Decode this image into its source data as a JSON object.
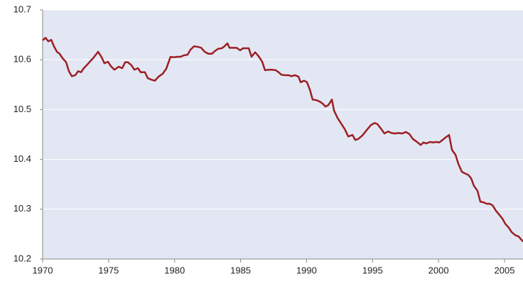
{
  "chart_data": {
    "type": "line",
    "x": [
      1970.0,
      1970.22,
      1970.43,
      1970.65,
      1970.86,
      1971.08,
      1971.29,
      1971.51,
      1971.78,
      1971.99,
      1972.21,
      1972.48,
      1972.69,
      1972.91,
      1973.12,
      1973.34,
      1973.61,
      1973.82,
      1974.2,
      1974.47,
      1974.68,
      1974.95,
      1975.17,
      1975.44,
      1975.76,
      1976.03,
      1976.25,
      1976.46,
      1976.73,
      1976.95,
      1977.22,
      1977.43,
      1977.75,
      1977.97,
      1978.24,
      1978.51,
      1978.78,
      1979.1,
      1979.37,
      1979.69,
      1979.91,
      1980.18,
      1980.45,
      1980.72,
      1980.98,
      1981.2,
      1981.47,
      1981.74,
      1982.01,
      1982.28,
      1982.55,
      1982.82,
      1983.03,
      1983.3,
      1983.57,
      1983.78,
      1984.0,
      1984.16,
      1984.38,
      1984.7,
      1984.97,
      1985.18,
      1985.4,
      1985.62,
      1985.83,
      1986.1,
      1986.37,
      1986.64,
      1986.85,
      1987.12,
      1987.39,
      1987.66,
      1987.88,
      1988.09,
      1988.36,
      1988.63,
      1988.85,
      1989.12,
      1989.39,
      1989.55,
      1989.82,
      1990.03,
      1990.25,
      1990.46,
      1990.73,
      1991.0,
      1991.22,
      1991.43,
      1991.65,
      1991.92,
      1992.08,
      1992.35,
      1992.62,
      1992.89,
      1993.16,
      1993.48,
      1993.69,
      1993.91,
      1994.23,
      1994.56,
      1994.88,
      1995.15,
      1995.36,
      1995.63,
      1995.9,
      1996.17,
      1996.44,
      1996.71,
      1996.98,
      1997.25,
      1997.52,
      1997.79,
      1998.05,
      1998.32,
      1998.65,
      1998.86,
      1999.08,
      1999.35,
      1999.56,
      1999.83,
      2000.05,
      2000.26,
      2000.53,
      2000.8,
      2001.02,
      2001.29,
      2001.5,
      2001.77,
      2001.99,
      2002.25,
      2002.47,
      2002.68,
      2002.95,
      2003.17,
      2003.39,
      2003.65,
      2003.87,
      2004.09,
      2004.35,
      2004.57,
      2004.84,
      2005.05,
      2005.32,
      2005.54,
      2005.81,
      2006.08,
      2006.4
    ],
    "series": [
      {
        "color": "#9b1f24",
        "values": [
          10.639,
          10.644,
          10.637,
          10.64,
          10.627,
          10.616,
          10.612,
          10.603,
          10.595,
          10.577,
          10.567,
          10.569,
          10.577,
          10.575,
          10.583,
          10.589,
          10.597,
          10.603,
          10.616,
          10.605,
          10.593,
          10.596,
          10.587,
          10.58,
          10.586,
          10.583,
          10.595,
          10.595,
          10.589,
          10.58,
          10.583,
          10.575,
          10.575,
          10.563,
          10.56,
          10.558,
          10.566,
          10.572,
          10.582,
          10.606,
          10.605,
          10.606,
          10.606,
          10.609,
          10.61,
          10.62,
          10.627,
          10.626,
          10.624,
          10.616,
          10.612,
          10.612,
          10.617,
          10.622,
          10.623,
          10.627,
          10.633,
          10.624,
          10.624,
          10.624,
          10.619,
          10.623,
          10.623,
          10.623,
          10.606,
          10.615,
          10.607,
          10.596,
          10.579,
          10.58,
          10.58,
          10.579,
          10.575,
          10.57,
          10.569,
          10.569,
          10.567,
          10.569,
          10.566,
          10.555,
          10.558,
          10.555,
          10.54,
          10.52,
          10.519,
          10.516,
          10.512,
          10.506,
          10.509,
          10.52,
          10.498,
          10.483,
          10.472,
          10.461,
          10.446,
          10.449,
          10.439,
          10.441,
          10.448,
          10.459,
          10.469,
          10.473,
          10.471,
          10.462,
          10.452,
          10.456,
          10.453,
          10.452,
          10.453,
          10.452,
          10.455,
          10.451,
          10.441,
          10.436,
          10.429,
          10.434,
          10.432,
          10.435,
          10.434,
          10.435,
          10.434,
          10.438,
          10.444,
          10.449,
          10.419,
          10.409,
          10.391,
          10.375,
          10.372,
          10.369,
          10.362,
          10.347,
          10.337,
          10.315,
          10.314,
          10.311,
          10.311,
          10.308,
          10.297,
          10.29,
          10.281,
          10.271,
          10.263,
          10.254,
          10.248,
          10.245,
          10.235
        ]
      }
    ],
    "xlim": [
      1970,
      2006.4
    ],
    "xticks": [
      1970,
      1975,
      1980,
      1985,
      1990,
      1995,
      2000,
      2005
    ],
    "ylim": [
      10.2,
      10.7
    ],
    "yticks": [
      10.2,
      10.3,
      10.4,
      10.5,
      10.6,
      10.7
    ],
    "grid": true
  }
}
